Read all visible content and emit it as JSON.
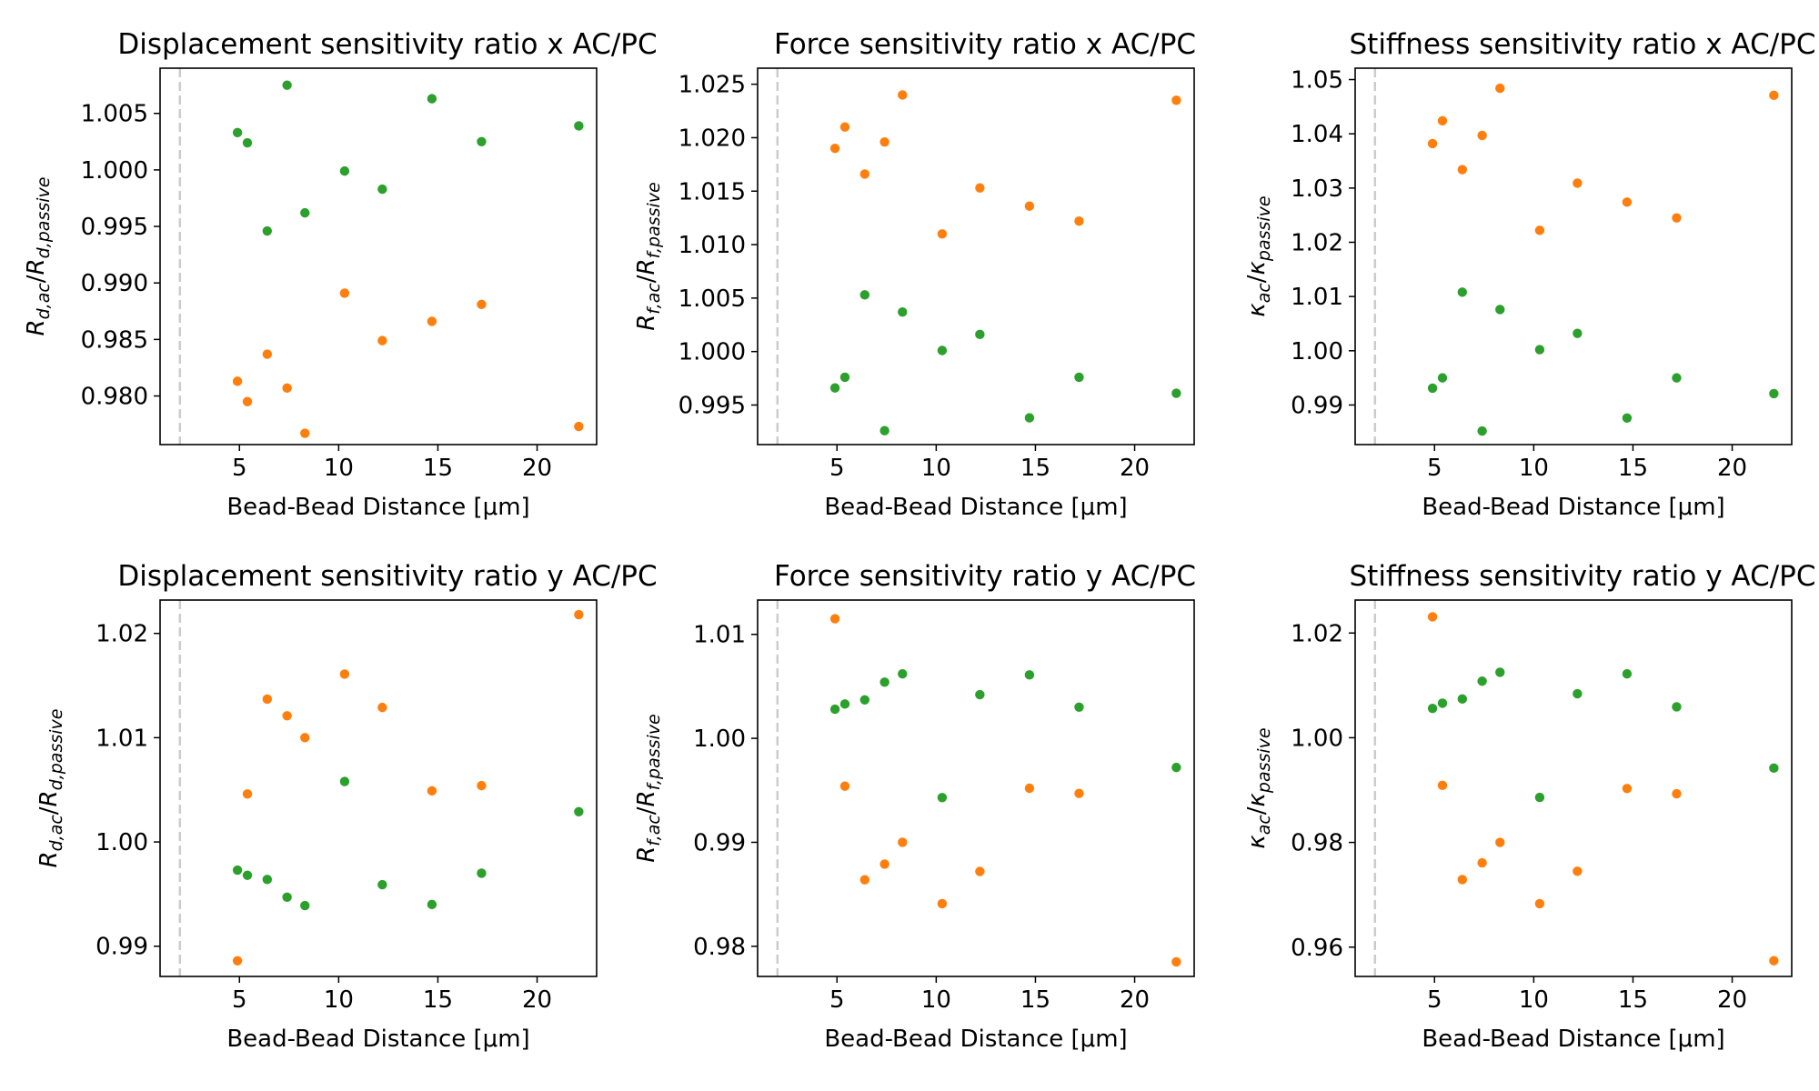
{
  "colors": {
    "green": "#2ca02c",
    "orange": "#ff7f0e",
    "refline": "#cccccc"
  },
  "chart_data": [
    {
      "type": "scatter",
      "title": "Displacement sensitivity ratio x AC/PC",
      "xlabel": "Bead-Bead Distance [μm]",
      "ylabel": {
        "base": "R",
        "sub_num": "d,ac",
        "sub_den": "d,passive",
        "math": "R_{d,ac}/R_{d,passive}"
      },
      "xlim": [
        1,
        23
      ],
      "ylim": [
        0.9757,
        1.009
      ],
      "xticks": [
        5,
        10,
        15,
        20
      ],
      "xtick_labels": [
        "5",
        "10",
        "15",
        "20"
      ],
      "yticks": [
        0.98,
        0.985,
        0.99,
        0.995,
        1.0,
        1.005
      ],
      "ytick_labels": [
        "0.980",
        "0.985",
        "0.990",
        "0.995",
        "1.000",
        "1.005"
      ],
      "vline_x": 2,
      "grid": false,
      "series": [
        {
          "color": "green",
          "x": [
            4.9,
            5.4,
            6.4,
            7.4,
            8.3,
            10.3,
            12.2,
            14.7,
            17.2,
            22.1
          ],
          "y": [
            1.0033,
            1.0024,
            0.9946,
            1.0075,
            0.9962,
            0.9999,
            0.9983,
            1.0063,
            1.0025,
            1.0039
          ]
        },
        {
          "color": "orange",
          "x": [
            4.9,
            5.4,
            6.4,
            7.4,
            8.3,
            10.3,
            12.2,
            14.7,
            17.2,
            22.1
          ],
          "y": [
            0.9813,
            0.9795,
            0.9837,
            0.9807,
            0.9767,
            0.9891,
            0.9849,
            0.9866,
            0.9881,
            0.9773
          ]
        }
      ]
    },
    {
      "type": "scatter",
      "title": "Force sensitivity ratio x AC/PC",
      "xlabel": "Bead-Bead Distance [μm]",
      "ylabel": {
        "base": "R",
        "sub_num": "f,ac",
        "sub_den": "f,passive",
        "math": "R_{f,ac}/R_{f,passive}"
      },
      "xlim": [
        1,
        23
      ],
      "ylim": [
        0.9913,
        1.0265
      ],
      "xticks": [
        5,
        10,
        15,
        20
      ],
      "xtick_labels": [
        "5",
        "10",
        "15",
        "20"
      ],
      "yticks": [
        0.995,
        1.0,
        1.005,
        1.01,
        1.015,
        1.02,
        1.025
      ],
      "ytick_labels": [
        "0.995",
        "1.000",
        "1.005",
        "1.010",
        "1.015",
        "1.020",
        "1.025"
      ],
      "vline_x": 2,
      "grid": false,
      "series": [
        {
          "color": "green",
          "x": [
            4.9,
            5.4,
            6.4,
            7.4,
            8.3,
            10.3,
            12.2,
            14.7,
            17.2,
            22.1
          ],
          "y": [
            0.9966,
            0.9976,
            1.0053,
            0.9926,
            1.0037,
            1.0001,
            1.0016,
            0.9938,
            0.9976,
            0.9961
          ]
        },
        {
          "color": "orange",
          "x": [
            4.9,
            5.4,
            6.4,
            7.4,
            8.3,
            10.3,
            12.2,
            14.7,
            17.2,
            22.1
          ],
          "y": [
            1.019,
            1.021,
            1.0166,
            1.0196,
            1.024,
            1.011,
            1.0153,
            1.0136,
            1.0122,
            1.0235
          ]
        }
      ]
    },
    {
      "type": "scatter",
      "title": "Stiffness sensitivity ratio x AC/PC",
      "xlabel": "Bead-Bead Distance [μm]",
      "ylabel": {
        "base": "κ",
        "sub_num": "ac",
        "sub_den": "passive",
        "math": "κ_{ac}/κ_{passive}"
      },
      "xlim": [
        1,
        23
      ],
      "ylim": [
        0.9827,
        1.0521
      ],
      "xticks": [
        5,
        10,
        15,
        20
      ],
      "xtick_labels": [
        "5",
        "10",
        "15",
        "20"
      ],
      "yticks": [
        0.99,
        1.0,
        1.01,
        1.02,
        1.03,
        1.04,
        1.05
      ],
      "ytick_labels": [
        "0.99",
        "1.00",
        "1.01",
        "1.02",
        "1.03",
        "1.04",
        "1.05"
      ],
      "vline_x": 2,
      "grid": false,
      "series": [
        {
          "color": "green",
          "x": [
            4.9,
            5.4,
            6.4,
            7.4,
            8.3,
            10.3,
            12.2,
            14.7,
            17.2,
            22.1
          ],
          "y": [
            0.9931,
            0.995,
            1.0108,
            0.9852,
            1.0076,
            1.0002,
            1.0032,
            0.9876,
            0.995,
            0.9921
          ]
        },
        {
          "color": "orange",
          "x": [
            4.9,
            5.4,
            6.4,
            7.4,
            8.3,
            10.3,
            12.2,
            14.7,
            17.2,
            22.1
          ],
          "y": [
            1.0382,
            1.0424,
            1.0334,
            1.0397,
            1.0484,
            1.0222,
            1.0309,
            1.0274,
            1.0245,
            1.0471
          ]
        }
      ]
    },
    {
      "type": "scatter",
      "title": "Displacement sensitivity ratio y AC/PC",
      "xlabel": "Bead-Bead Distance [μm]",
      "ylabel": {
        "base": "R",
        "sub_num": "d,ac",
        "sub_den": "d,passive",
        "math": "R_{d,ac}/R_{d,passive}"
      },
      "xlim": [
        1,
        23
      ],
      "ylim": [
        0.9871,
        1.0232
      ],
      "xticks": [
        5,
        10,
        15,
        20
      ],
      "xtick_labels": [
        "5",
        "10",
        "15",
        "20"
      ],
      "yticks": [
        0.99,
        1.0,
        1.01,
        1.02
      ],
      "ytick_labels": [
        "0.99",
        "1.00",
        "1.01",
        "1.02"
      ],
      "vline_x": 2,
      "grid": false,
      "series": [
        {
          "color": "green",
          "x": [
            4.9,
            5.4,
            6.4,
            7.4,
            8.3,
            10.3,
            12.2,
            14.7,
            17.2,
            22.1
          ],
          "y": [
            0.9973,
            0.9968,
            0.9964,
            0.9947,
            0.9939,
            1.0058,
            0.9959,
            0.994,
            0.997,
            1.0029
          ]
        },
        {
          "color": "orange",
          "x": [
            4.9,
            5.4,
            6.4,
            7.4,
            8.3,
            10.3,
            12.2,
            14.7,
            17.2,
            22.1
          ],
          "y": [
            0.9886,
            1.0046,
            1.0137,
            1.0121,
            1.01,
            1.0161,
            1.0129,
            1.0049,
            1.0054,
            1.0218
          ]
        }
      ]
    },
    {
      "type": "scatter",
      "title": "Force sensitivity ratio y AC/PC",
      "xlabel": "Bead-Bead Distance [μm]",
      "ylabel": {
        "base": "R",
        "sub_num": "f,ac",
        "sub_den": "f,passive",
        "math": "R_{f,ac}/R_{f,passive}"
      },
      "xlim": [
        1,
        23
      ],
      "ylim": [
        0.9771,
        1.0133
      ],
      "xticks": [
        5,
        10,
        15,
        20
      ],
      "xtick_labels": [
        "5",
        "10",
        "15",
        "20"
      ],
      "yticks": [
        0.98,
        0.99,
        1.0,
        1.01
      ],
      "ytick_labels": [
        "0.98",
        "0.99",
        "1.00",
        "1.01"
      ],
      "vline_x": 2,
      "grid": false,
      "series": [
        {
          "color": "green",
          "x": [
            4.9,
            5.4,
            6.4,
            7.4,
            8.3,
            10.3,
            12.2,
            14.7,
            17.2,
            22.1
          ],
          "y": [
            1.0028,
            1.0033,
            1.0037,
            1.0054,
            1.0062,
            0.9943,
            1.0042,
            1.0061,
            1.003,
            0.9972
          ]
        },
        {
          "color": "orange",
          "x": [
            4.9,
            5.4,
            6.4,
            7.4,
            8.3,
            10.3,
            12.2,
            14.7,
            17.2,
            22.1
          ],
          "y": [
            1.0115,
            0.9954,
            0.9864,
            0.9879,
            0.99,
            0.9841,
            0.9872,
            0.9952,
            0.9947,
            0.9785
          ]
        }
      ]
    },
    {
      "type": "scatter",
      "title": "Stiffness sensitivity ratio y AC/PC",
      "xlabel": "Bead-Bead Distance [μm]",
      "ylabel": {
        "base": "κ",
        "sub_num": "ac",
        "sub_den": "passive",
        "math": "κ_{ac}/κ_{passive}"
      },
      "xlim": [
        1,
        23
      ],
      "ylim": [
        0.9544,
        1.0263
      ],
      "xticks": [
        5,
        10,
        15,
        20
      ],
      "xtick_labels": [
        "5",
        "10",
        "15",
        "20"
      ],
      "yticks": [
        0.96,
        0.98,
        1.0,
        1.02
      ],
      "ytick_labels": [
        "0.96",
        "0.98",
        "1.00",
        "1.02"
      ],
      "vline_x": 2,
      "grid": false,
      "series": [
        {
          "color": "green",
          "x": [
            4.9,
            5.4,
            6.4,
            7.4,
            8.3,
            10.3,
            12.2,
            14.7,
            17.2,
            22.1
          ],
          "y": [
            1.0056,
            1.0066,
            1.0074,
            1.0108,
            1.0125,
            0.9886,
            1.0084,
            1.0122,
            1.0059,
            0.9942
          ]
        },
        {
          "color": "orange",
          "x": [
            4.9,
            5.4,
            6.4,
            7.4,
            8.3,
            10.3,
            12.2,
            14.7,
            17.2,
            22.1
          ],
          "y": [
            1.0231,
            0.9909,
            0.9729,
            0.9761,
            0.98,
            0.9683,
            0.9745,
            0.9903,
            0.9893,
            0.9574
          ]
        }
      ]
    }
  ]
}
